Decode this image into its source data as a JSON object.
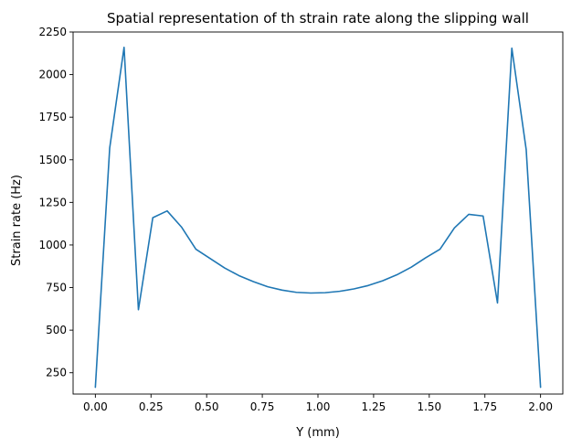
{
  "chart_data": {
    "type": "line",
    "title": "Spatial representation of th strain rate along the slipping wall",
    "xlabel": "Y (mm)",
    "ylabel": "Strain rate (Hz)",
    "xlim": [
      -0.1,
      2.1
    ],
    "ylim": [
      125,
      2250
    ],
    "xticks": [
      0.0,
      0.25,
      0.5,
      0.75,
      1.0,
      1.25,
      1.5,
      1.75,
      2.0
    ],
    "xtick_labels": [
      "0.00",
      "0.25",
      "0.50",
      "0.75",
      "1.00",
      "1.25",
      "1.50",
      "1.75",
      "2.00"
    ],
    "yticks": [
      250,
      500,
      750,
      1000,
      1250,
      1500,
      1750,
      2000,
      2250
    ],
    "ytick_labels": [
      "250",
      "500",
      "750",
      "1000",
      "1250",
      "1500",
      "1750",
      "2000",
      "2250"
    ],
    "grid": false,
    "series": [
      {
        "color": "#1f77b4",
        "x": [
          0.0,
          0.0645,
          0.129,
          0.1935,
          0.258,
          0.3226,
          0.3871,
          0.4516,
          0.5161,
          0.5806,
          0.6452,
          0.7097,
          0.7742,
          0.8387,
          0.9032,
          0.9677,
          1.0323,
          1.0968,
          1.1613,
          1.2258,
          1.2903,
          1.3548,
          1.4194,
          1.4839,
          1.5484,
          1.6129,
          1.6774,
          1.7419,
          1.8065,
          1.871,
          1.9355,
          2.0
        ],
        "y": [
          165,
          1570,
          2160,
          620,
          1160,
          1200,
          1105,
          975,
          920,
          865,
          820,
          785,
          755,
          735,
          722,
          718,
          720,
          728,
          742,
          762,
          790,
          825,
          870,
          925,
          975,
          1100,
          1180,
          1170,
          660,
          2155,
          1560,
          165
        ]
      }
    ]
  }
}
